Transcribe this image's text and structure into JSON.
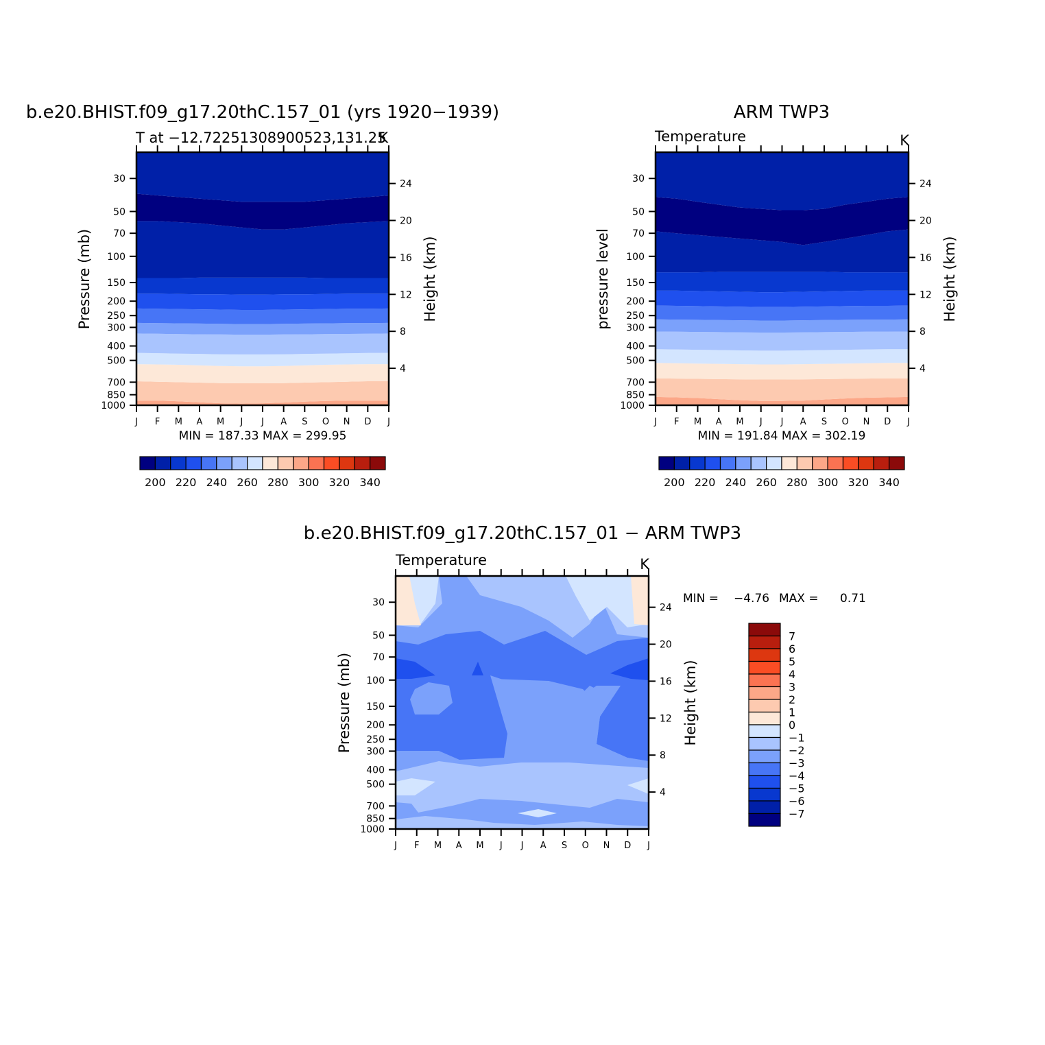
{
  "colors": {
    "abs_levels": [
      "#000080",
      "#0020a8",
      "#0838cf",
      "#1f50ee",
      "#4775f6",
      "#7ba1fb",
      "#a9c4fe",
      "#d3e5ff",
      "#fde8d8",
      "#fdcab0",
      "#fca788",
      "#fb7352",
      "#fa4d24",
      "#dd3710",
      "#b81e0e",
      "#8b0a0a"
    ],
    "diff_levels": [
      "#000080",
      "#0020a8",
      "#0838cf",
      "#1f50ee",
      "#4775f6",
      "#7ba1fb",
      "#a9c4fe",
      "#d3e5ff",
      "#fde8d8",
      "#fdcab0",
      "#fca788",
      "#fb7352",
      "#fa4d24",
      "#dd3710",
      "#b81e0e",
      "#8b0a0a"
    ]
  },
  "chart_data": [
    {
      "type": "heatmap",
      "title": "b.e20.BHIST.f09_g17.20thC.157_01 (yrs 1920−1939)",
      "subtitle_left": "T at −12.72251308900523,131.25",
      "subtitle_right": "K",
      "ylabel": "Pressure (mb)",
      "ylabel_right": "Height (km)",
      "y_scale": "log",
      "y_ticks": [
        30,
        50,
        70,
        100,
        150,
        200,
        250,
        300,
        400,
        500,
        700,
        850,
        1000
      ],
      "y_range": [
        1000,
        20
      ],
      "height_ticks": [
        4,
        8,
        12,
        16,
        20,
        24
      ],
      "x_ticks": [
        "J",
        "F",
        "M",
        "A",
        "M",
        "J",
        "J",
        "A",
        "S",
        "O",
        "N",
        "D",
        "J"
      ],
      "stats": "MIN = 187.33 MAX = 299.95",
      "levels_label": [
        200,
        220,
        240,
        260,
        280,
        300,
        320,
        340
      ],
      "band_fills": [
        "#fca788",
        "#fdcab0",
        "#fde8d8",
        "#d3e5ff",
        "#a9c4fe",
        "#7ba1fb",
        "#4775f6",
        "#1f50ee",
        "#0838cf",
        "#0020a8",
        "#000080",
        "#0020a8",
        "#0838cf"
      ],
      "boundaries_p": [
        [
          930,
          930,
          940,
          955,
          970,
          975,
          970,
          960,
          945,
          935,
          930,
          930,
          930
        ],
        [
          690,
          695,
          700,
          705,
          710,
          712,
          712,
          710,
          705,
          700,
          695,
          690,
          690
        ],
        [
          530,
          532,
          535,
          540,
          545,
          548,
          548,
          545,
          540,
          535,
          532,
          530,
          530
        ],
        [
          445,
          447,
          450,
          452,
          455,
          456,
          456,
          455,
          452,
          450,
          448,
          446,
          445
        ],
        [
          330,
          331,
          333,
          334,
          335,
          336,
          336,
          335,
          334,
          333,
          332,
          331,
          330
        ],
        [
          280,
          281,
          282,
          283,
          284,
          285,
          285,
          284,
          283,
          282,
          281,
          281,
          280
        ],
        [
          224,
          225,
          226,
          227,
          228,
          229,
          229,
          228,
          227,
          226,
          225,
          225,
          224
        ],
        [
          178,
          178,
          179,
          180,
          180,
          181,
          181,
          180,
          180,
          179,
          178,
          178,
          178
        ],
        [
          140,
          140,
          140,
          139,
          139,
          139,
          139,
          139,
          139,
          140,
          140,
          140,
          140
        ],
        [
          58,
          58,
          59,
          60,
          62,
          64,
          66,
          66,
          64,
          62,
          60,
          59,
          58
        ],
        [
          38,
          39,
          40,
          41,
          42,
          43,
          43,
          43,
          43,
          42,
          41,
          40,
          39
        ],
        [
          18,
          18,
          18,
          18,
          18,
          18,
          18,
          18,
          18,
          18,
          18,
          18,
          18
        ]
      ]
    },
    {
      "type": "heatmap",
      "title": "ARM TWP3",
      "subtitle_left": "Temperature",
      "subtitle_right": "K",
      "ylabel": "pressure level",
      "ylabel_right": "Height (km)",
      "y_scale": "log",
      "y_ticks": [
        30,
        50,
        70,
        100,
        150,
        200,
        250,
        300,
        400,
        500,
        700,
        850,
        1000
      ],
      "y_range": [
        1000,
        20
      ],
      "height_ticks": [
        4,
        8,
        12,
        16,
        20,
        24
      ],
      "x_ticks": [
        "J",
        "F",
        "M",
        "A",
        "M",
        "J",
        "J",
        "A",
        "S",
        "O",
        "N",
        "D",
        "J"
      ],
      "stats": "MIN = 191.84 MAX = 302.19",
      "levels_label": [
        200,
        220,
        240,
        260,
        280,
        300,
        320,
        340
      ],
      "band_fills": [
        "#fca788",
        "#fdcab0",
        "#fde8d8",
        "#d3e5ff",
        "#a9c4fe",
        "#7ba1fb",
        "#4775f6",
        "#1f50ee",
        "#0838cf",
        "#0020a8",
        "#000080",
        "#0020a8",
        "#0838cf"
      ],
      "boundaries_p": [
        [
          880,
          885,
          895,
          910,
          925,
          935,
          935,
          930,
          915,
          900,
          890,
          885,
          880
        ],
        [
          660,
          662,
          665,
          668,
          670,
          672,
          672,
          670,
          668,
          665,
          662,
          660,
          660
        ],
        [
          520,
          522,
          525,
          527,
          530,
          532,
          532,
          530,
          527,
          525,
          522,
          520,
          520
        ],
        [
          420,
          422,
          424,
          426,
          428,
          430,
          430,
          428,
          426,
          424,
          422,
          420,
          420
        ],
        [
          320,
          321,
          322,
          323,
          324,
          325,
          325,
          324,
          323,
          322,
          321,
          321,
          320
        ],
        [
          265,
          266,
          267,
          268,
          269,
          270,
          270,
          269,
          268,
          267,
          266,
          266,
          265
        ],
        [
          214,
          215,
          216,
          217,
          218,
          219,
          219,
          218,
          217,
          216,
          215,
          215,
          214
        ],
        [
          170,
          170,
          171,
          172,
          173,
          174,
          174,
          173,
          172,
          171,
          170,
          170,
          170
        ],
        [
          128,
          128,
          128,
          127,
          127,
          127,
          127,
          127,
          127,
          128,
          128,
          128,
          128
        ],
        [
          68,
          70,
          72,
          74,
          76,
          78,
          80,
          84,
          80,
          76,
          72,
          68,
          66
        ],
        [
          40,
          41,
          43,
          45,
          47,
          48,
          49,
          49,
          48,
          45,
          43,
          41,
          40
        ],
        [
          18,
          18,
          18,
          18,
          18,
          18,
          18,
          18,
          18,
          18,
          18,
          18,
          18
        ]
      ]
    },
    {
      "type": "heatmap",
      "title": "b.e20.BHIST.f09_g17.20thC.157_01 − ARM TWP3",
      "subtitle_left": "Temperature",
      "subtitle_right": "K",
      "ylabel": "Pressure (mb)",
      "ylabel_right": "Height (km)",
      "y_scale": "log",
      "y_ticks": [
        30,
        50,
        70,
        100,
        150,
        200,
        250,
        300,
        400,
        500,
        700,
        850,
        1000
      ],
      "y_range": [
        1000,
        20
      ],
      "height_ticks": [
        4,
        8,
        12,
        16,
        20,
        24
      ],
      "x_ticks": [
        "J",
        "F",
        "M",
        "A",
        "M",
        "J",
        "J",
        "A",
        "S",
        "O",
        "N",
        "D",
        "J"
      ],
      "stats_label": "MIN =",
      "stats_min": "−4.76",
      "stats_max_label": "MAX =",
      "stats_max": "0.71",
      "levels_label": [
        "7",
        "6",
        "5",
        "4",
        "3",
        "2",
        "1",
        "0",
        "−1",
        "−2",
        "−3",
        "−4",
        "−5",
        "−6",
        "−7"
      ]
    }
  ]
}
